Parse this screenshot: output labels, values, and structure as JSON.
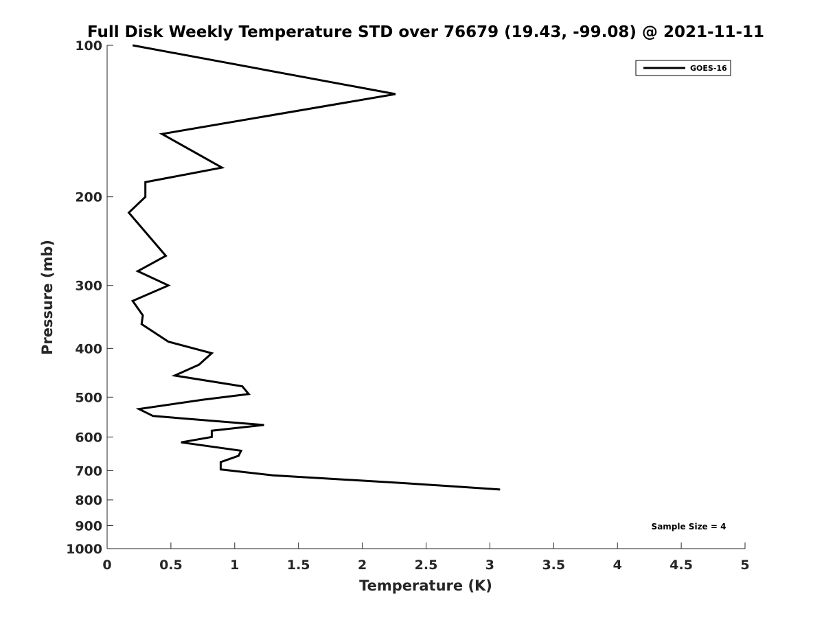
{
  "chart_data": {
    "type": "line",
    "title": "Full Disk Weekly Temperature STD over 76679 (19.43, -99.08) @ 2021-11-11",
    "xlabel": "Temperature (K)",
    "ylabel": "Pressure (mb)",
    "xlim": [
      0,
      5
    ],
    "ylim": [
      100,
      1000
    ],
    "y_scale": "log",
    "y_reversed": true,
    "grid": false,
    "legend_position": "top-right",
    "x_ticks": [
      "0",
      "0.5",
      "1",
      "1.5",
      "2",
      "2.5",
      "3",
      "3.5",
      "4",
      "4.5",
      "5"
    ],
    "y_ticks": [
      "100",
      "200",
      "300",
      "400",
      "500",
      "600",
      "700",
      "800",
      "900",
      "1000"
    ],
    "annotation": "Sample Size = 4",
    "series": [
      {
        "name": "GOES-16",
        "color": "#000000",
        "points": [
          [
            0.2,
            100
          ],
          [
            2.26,
            125
          ],
          [
            0.43,
            150
          ],
          [
            0.9,
            175
          ],
          [
            0.3,
            187
          ],
          [
            0.3,
            200
          ],
          [
            0.17,
            215
          ],
          [
            0.46,
            262
          ],
          [
            0.24,
            281
          ],
          [
            0.48,
            300
          ],
          [
            0.2,
            322
          ],
          [
            0.28,
            344
          ],
          [
            0.27,
            358
          ],
          [
            0.48,
            388
          ],
          [
            0.82,
            409
          ],
          [
            0.72,
            431
          ],
          [
            0.53,
            453
          ],
          [
            1.06,
            476
          ],
          [
            1.11,
            493
          ],
          [
            0.75,
            506
          ],
          [
            0.25,
            528
          ],
          [
            0.36,
            545
          ],
          [
            1.23,
            568
          ],
          [
            0.82,
            583
          ],
          [
            0.82,
            600
          ],
          [
            0.58,
            615
          ],
          [
            1.05,
            639
          ],
          [
            1.03,
            654
          ],
          [
            0.89,
            673
          ],
          [
            0.89,
            696
          ],
          [
            1.3,
            715
          ],
          [
            2.33,
            741
          ],
          [
            3.08,
            763
          ]
        ]
      }
    ]
  }
}
